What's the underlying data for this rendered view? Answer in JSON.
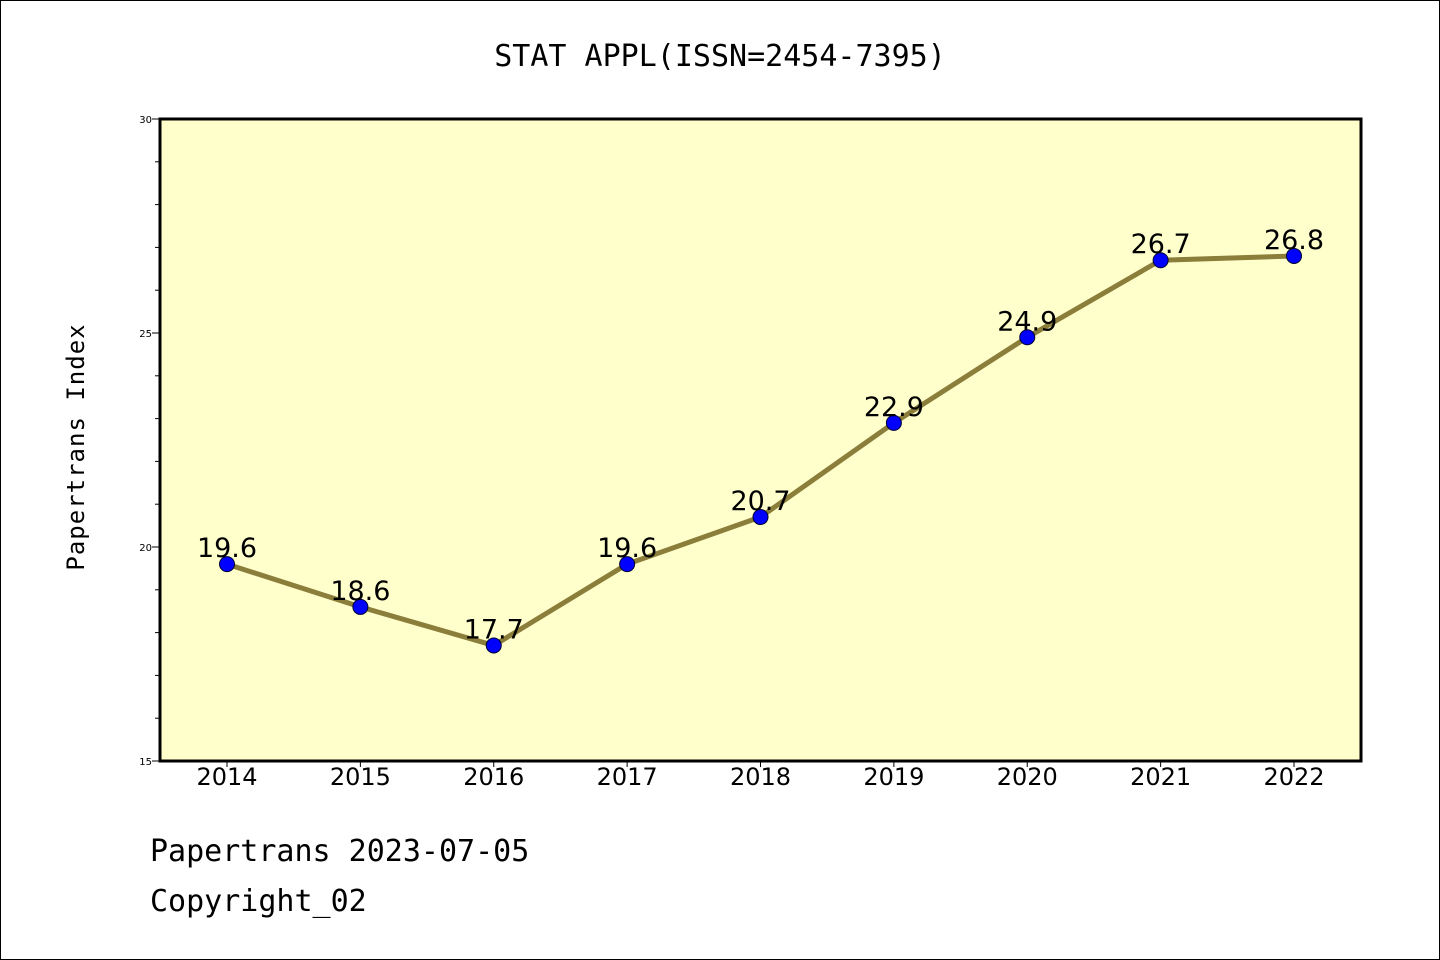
{
  "chart_data": {
    "type": "line",
    "title": "STAT APPL(ISSN=2454-7395)",
    "xlabel": "",
    "ylabel": "Papertrans Index",
    "categories": [
      "2014",
      "2015",
      "2016",
      "2017",
      "2018",
      "2019",
      "2020",
      "2021",
      "2022"
    ],
    "values": [
      19.6,
      18.6,
      17.7,
      19.6,
      20.7,
      22.9,
      24.9,
      26.7,
      26.8
    ],
    "data_labels": [
      "19.6",
      "18.6",
      "17.7",
      "19.6",
      "20.7",
      "22.9",
      "24.9",
      "26.7",
      "26.8"
    ],
    "ylim": [
      15,
      30
    ],
    "yticks": [
      15,
      20,
      25,
      30
    ],
    "ytick_labels": [
      "15",
      "20",
      "25",
      "30"
    ],
    "grid": false,
    "colors": {
      "plot_background": "#ffffcc",
      "line": "#8b7d3a",
      "marker": "#0000ff"
    }
  },
  "footer": {
    "date_line": "Papertrans 2023-07-05",
    "copyright": "Copyright_02"
  }
}
